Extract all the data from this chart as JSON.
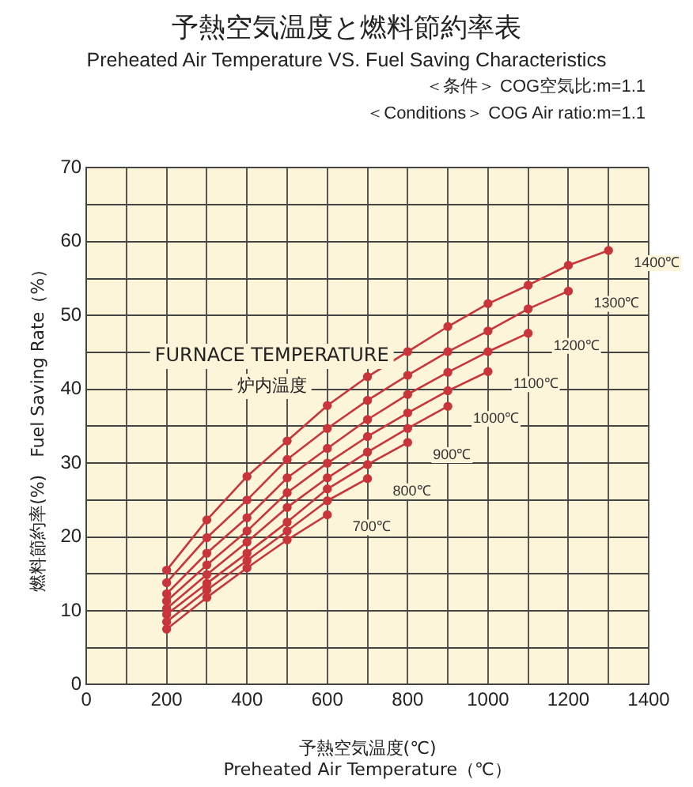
{
  "chart_data": {
    "type": "line",
    "title": "予熱空気温度と燃料節約率表",
    "subtitle": "Preheated Air Temperature VS. Fuel Saving Characteristics",
    "xlabel": "予熱空気温度(℃)\nPreheated Air Temperature（℃）",
    "ylabel": "燃料節約率(%)　Fuel Saving Rate（%）",
    "annotations": [
      "＜条件＞ COG空気比:m=1.1",
      "＜Conditions＞ COG Air ratio:m=1.1",
      "FURNACE TEMPERATURE",
      "炉内温度"
    ],
    "x": [
      200,
      300,
      400,
      500,
      600,
      700,
      800,
      900,
      1000,
      1100,
      1200,
      1300
    ],
    "series": [
      {
        "name": "700℃",
        "color": "#c8353a",
        "values": [
          7.5,
          11.8,
          15.8,
          19.6,
          23,
          null,
          null,
          null,
          null,
          null,
          null,
          null
        ]
      },
      {
        "name": "800℃",
        "color": "#c8353a",
        "values": [
          8.5,
          12.8,
          16.8,
          20.8,
          24.9,
          27.9,
          null,
          null,
          null,
          null,
          null,
          null
        ]
      },
      {
        "name": "900℃",
        "color": "#c8353a",
        "values": [
          9.5,
          13.7,
          17.8,
          22,
          26.5,
          29.8,
          32.8,
          null,
          null,
          null,
          null,
          null
        ]
      },
      {
        "name": "1000℃",
        "color": "#c8353a",
        "values": [
          10.3,
          14.9,
          19.3,
          24,
          28,
          31.5,
          34.7,
          37.7,
          null,
          null,
          null,
          null
        ]
      },
      {
        "name": "1100℃",
        "color": "#c8353a",
        "values": [
          11.3,
          16.2,
          20.8,
          26,
          30,
          33.6,
          36.8,
          39.8,
          42.4,
          null,
          null,
          null
        ]
      },
      {
        "name": "1200℃",
        "color": "#c8353a",
        "values": [
          12.3,
          17.8,
          22.6,
          28,
          32,
          35.9,
          39.3,
          42.3,
          45.1,
          47.6,
          null,
          null
        ]
      },
      {
        "name": "1300℃",
        "color": "#c8353a",
        "values": [
          13.8,
          19.9,
          25,
          30.5,
          34.7,
          38.5,
          41.9,
          45.1,
          47.9,
          50.9,
          53.3,
          null
        ]
      },
      {
        "name": "1400℃",
        "color": "#c8353a",
        "values": [
          15.5,
          22.3,
          28.2,
          33,
          37.8,
          41.7,
          45.1,
          48.5,
          51.6,
          54.1,
          56.8,
          58.8
        ]
      }
    ],
    "xlim": [
      0,
      1400
    ],
    "xticks": [
      0,
      {
        "value": 100,
        "label": null
      },
      200,
      {
        "value": 300,
        "label": null
      },
      400,
      {
        "value": 500,
        "label": null
      },
      600,
      {
        "value": 700,
        "label": null
      },
      800,
      {
        "value": 900,
        "label": null
      },
      1000,
      {
        "value": 1100,
        "label": null
      },
      1200,
      {
        "value": 1300,
        "label": null
      },
      1400
    ],
    "ylim": [
      0,
      70
    ],
    "yticks": [
      0,
      {
        "value": 5,
        "label": null
      },
      10,
      {
        "value": 15,
        "label": null
      },
      20,
      {
        "value": 25,
        "label": null
      },
      30,
      {
        "value": 35,
        "label": null
      },
      40,
      {
        "value": 45,
        "label": null
      },
      50,
      {
        "value": 55,
        "label": null
      },
      60,
      {
        "value": 65,
        "label": null
      },
      70
    ],
    "grid": true,
    "legend": false,
    "marker": "circle",
    "line_style": "solid"
  }
}
